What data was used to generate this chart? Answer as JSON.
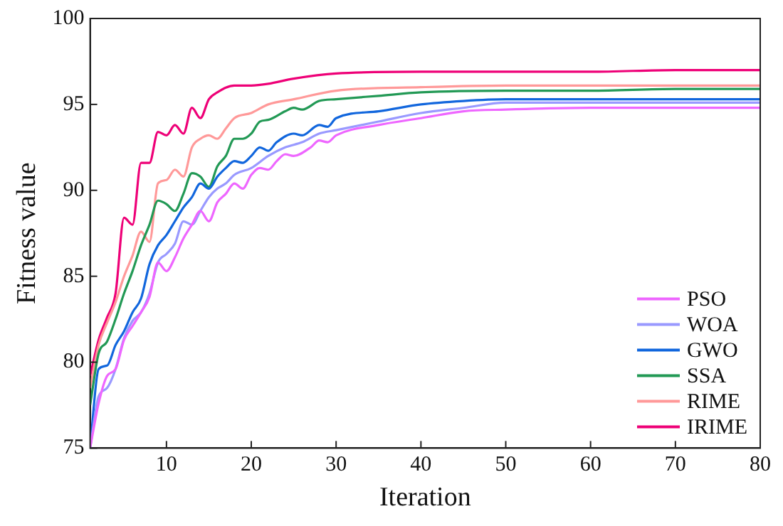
{
  "chart_data": {
    "type": "line",
    "xlabel": "Iteration",
    "ylabel": "Fitness value",
    "xlim": [
      1,
      80
    ],
    "xticks": [
      10,
      20,
      30,
      40,
      50,
      60,
      70,
      80
    ],
    "ylim": [
      75,
      100
    ],
    "yticks": [
      75,
      80,
      85,
      90,
      95,
      100
    ],
    "grid": false,
    "legend": "bottom right",
    "marker": "none",
    "line_style": "solid",
    "series": [
      {
        "name": "PSO",
        "color": "#ee66ff",
        "x": [
          1,
          2,
          3,
          4,
          5,
          6,
          7,
          8,
          9,
          10,
          11,
          12,
          13,
          14,
          15,
          16,
          17,
          18,
          19,
          20,
          21,
          22,
          23,
          24,
          25,
          27,
          28,
          29,
          30,
          35,
          40,
          45,
          50,
          60,
          70,
          80
        ],
        "values": [
          75,
          77.6,
          79.2,
          79.6,
          81.3,
          82.1,
          82.9,
          83.8,
          85.8,
          85.3,
          86.1,
          87.2,
          88,
          88.8,
          88.2,
          89.3,
          89.8,
          90.4,
          90.1,
          90.9,
          91.3,
          91.2,
          91.7,
          92.1,
          92,
          92.5,
          92.9,
          92.8,
          93.2,
          93.8,
          94.2,
          94.6,
          94.7,
          94.8,
          94.8,
          94.8
        ]
      },
      {
        "name": "WOA",
        "color": "#9999ff",
        "x": [
          1,
          2,
          3,
          4,
          5,
          6,
          7,
          8,
          9,
          10,
          11,
          12,
          13,
          14,
          15,
          16,
          17,
          18,
          20,
          22,
          24,
          26,
          28,
          30,
          35,
          40,
          45,
          50,
          60,
          70,
          80
        ],
        "values": [
          75,
          78,
          78.5,
          79.6,
          81.4,
          82.4,
          82.9,
          84,
          85.8,
          86.3,
          86.9,
          88.2,
          88,
          88.8,
          89.6,
          90.1,
          90.4,
          90.9,
          91.3,
          92,
          92.5,
          92.8,
          93.3,
          93.5,
          94,
          94.5,
          94.8,
          95.1,
          95.1,
          95.1,
          95.1
        ]
      },
      {
        "name": "GWO",
        "color": "#1166dd",
        "x": [
          1,
          2,
          3,
          4,
          5,
          6,
          7,
          8,
          9,
          10,
          11,
          12,
          13,
          14,
          15,
          16,
          17,
          18,
          19,
          20,
          21,
          22,
          23,
          25,
          26,
          28,
          29,
          30,
          35,
          40,
          45,
          50,
          60,
          70,
          80
        ],
        "values": [
          75,
          79.6,
          79.8,
          81,
          81.8,
          82.9,
          83.7,
          85.7,
          86.8,
          87.4,
          88.2,
          89,
          89.6,
          90.4,
          90.1,
          90.8,
          91.3,
          91.7,
          91.6,
          92,
          92.5,
          92.3,
          92.8,
          93.3,
          93.2,
          93.8,
          93.7,
          94.2,
          94.6,
          95,
          95.2,
          95.3,
          95.3,
          95.3,
          95.3
        ]
      },
      {
        "name": "SSA",
        "color": "#229955",
        "x": [
          1,
          2,
          3,
          4,
          5,
          6,
          7,
          8,
          9,
          10,
          11,
          12,
          13,
          14,
          15,
          16,
          17,
          18,
          19,
          20,
          21,
          22,
          24,
          25,
          26,
          28,
          30,
          35,
          40,
          50,
          60,
          70,
          80
        ],
        "values": [
          77.5,
          80.5,
          81.2,
          82.5,
          84,
          85.3,
          86.8,
          88,
          89.4,
          89.2,
          88.8,
          89.8,
          91,
          90.8,
          90.2,
          91.4,
          92,
          93,
          93,
          93.3,
          94,
          94.1,
          94.6,
          94.8,
          94.7,
          95.2,
          95.3,
          95.5,
          95.7,
          95.8,
          95.8,
          95.9,
          95.9
        ]
      },
      {
        "name": "RIME",
        "color": "#ff9999",
        "x": [
          1,
          2,
          3,
          4,
          5,
          6,
          7,
          8,
          9,
          10,
          11,
          12,
          13,
          14,
          15,
          16,
          17,
          18,
          20,
          22,
          25,
          30,
          40,
          50,
          60,
          70,
          80
        ],
        "values": [
          78.5,
          81,
          82.3,
          83.5,
          85,
          86.2,
          87.6,
          87,
          90.4,
          90.6,
          91.2,
          90.8,
          92.5,
          93,
          93.2,
          93,
          93.6,
          94.2,
          94.5,
          95,
          95.3,
          95.8,
          96,
          96.1,
          96.1,
          96.1,
          96.1
        ]
      },
      {
        "name": "IRIME",
        "color": "#ee0077",
        "x": [
          1,
          2,
          3,
          4,
          5,
          6,
          7,
          8,
          9,
          10,
          11,
          12,
          13,
          14,
          15,
          16,
          18,
          20,
          22,
          25,
          30,
          40,
          50,
          60,
          70,
          80
        ],
        "values": [
          79.2,
          81.3,
          82.6,
          84,
          88.4,
          88,
          91.6,
          91.6,
          93.4,
          93.2,
          93.8,
          93.3,
          94.8,
          94.2,
          95.3,
          95.7,
          96.1,
          96.1,
          96.2,
          96.5,
          96.8,
          96.9,
          96.9,
          96.9,
          97,
          97
        ]
      }
    ]
  }
}
